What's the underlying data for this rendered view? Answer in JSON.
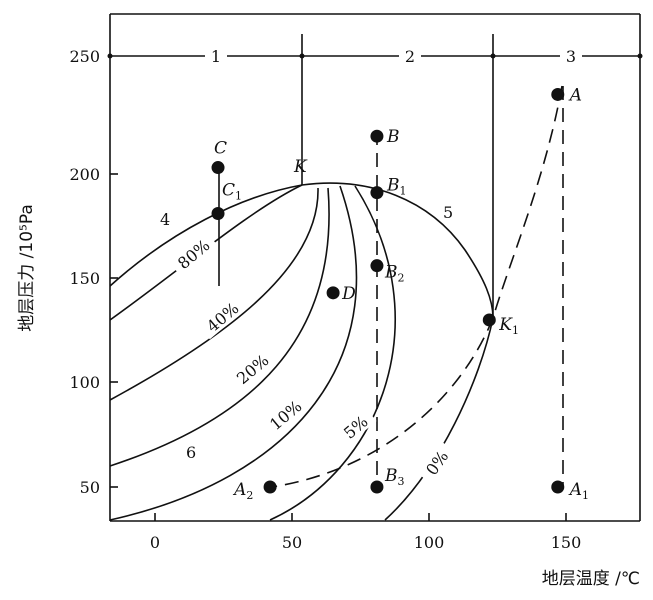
{
  "axes": {
    "y_title": "地层压力 /10⁵Pa",
    "x_title": "地层温度 /℃",
    "x_ticks": [
      {
        "value": 0,
        "label": "0"
      },
      {
        "value": 50,
        "label": "50"
      },
      {
        "value": 100,
        "label": "100"
      },
      {
        "value": 150,
        "label": "150"
      }
    ],
    "y_ticks": [
      {
        "value": 50,
        "label": "50"
      },
      {
        "value": 100,
        "label": "100"
      },
      {
        "value": 150,
        "label": "150"
      },
      {
        "value": 200,
        "label": "200"
      },
      {
        "value": 250,
        "label": "250"
      }
    ]
  },
  "regions": [
    {
      "label": "1"
    },
    {
      "label": "2"
    },
    {
      "label": "3"
    }
  ],
  "points": [
    {
      "letter": "A",
      "sub": "",
      "t": 147,
      "p": 238
    },
    {
      "letter": "A",
      "sub": "1",
      "t": 147,
      "p": 50
    },
    {
      "letter": "A",
      "sub": "2",
      "t": 42,
      "p": 50
    },
    {
      "letter": "B",
      "sub": "",
      "t": 81,
      "p": 218
    },
    {
      "letter": "B",
      "sub": "1",
      "t": 81,
      "p": 191
    },
    {
      "letter": "B",
      "sub": "2",
      "t": 81,
      "p": 156
    },
    {
      "letter": "B",
      "sub": "3",
      "t": 81,
      "p": 50
    },
    {
      "letter": "C",
      "sub": "",
      "t": 23,
      "p": 203
    },
    {
      "letter": "C",
      "sub": "1",
      "t": 23,
      "p": 181
    },
    {
      "letter": "D",
      "sub": "",
      "t": 65,
      "p": 143
    },
    {
      "letter": "K",
      "sub": "1",
      "t": 122,
      "p": 130
    }
  ],
  "critical_point_label": "K",
  "curve_labels": {
    "bubble_point_curve": "4",
    "dew_point_curve": "5",
    "two_phase_region": "6"
  },
  "quality_lines": [
    "80%",
    "40%",
    "20%",
    "10%",
    "5%",
    "0%"
  ]
}
